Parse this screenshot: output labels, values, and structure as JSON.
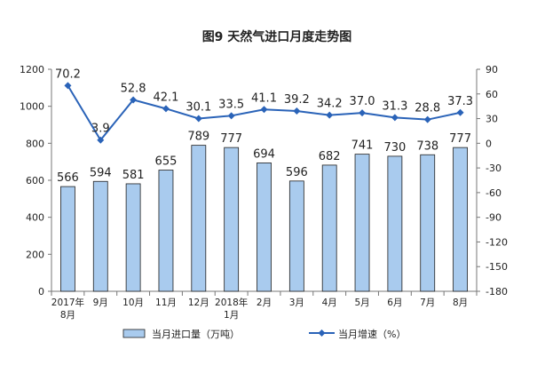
{
  "chart_data": {
    "type": "bar",
    "title": "图9  天然气进口月度走势图",
    "categories": [
      [
        "2017年",
        "8月"
      ],
      [
        "9月"
      ],
      [
        "10月"
      ],
      [
        "11月"
      ],
      [
        "12月"
      ],
      [
        "2018年",
        "1月"
      ],
      [
        "2月"
      ],
      [
        "3月"
      ],
      [
        "4月"
      ],
      [
        "5月"
      ],
      [
        "6月"
      ],
      [
        "7月"
      ],
      [
        "8月"
      ]
    ],
    "series": [
      {
        "name": "当月进口量（万吨）",
        "type": "bar",
        "axis": "left",
        "values": [
          566,
          594,
          581,
          655,
          789,
          777,
          694,
          596,
          682,
          741,
          730,
          738,
          777
        ],
        "labels": [
          "566",
          "594",
          "581",
          "655",
          "789",
          "777",
          "694",
          "596",
          "682",
          "741",
          "730",
          "738",
          "777"
        ]
      },
      {
        "name": "当月增速（%）",
        "type": "line",
        "axis": "right",
        "values": [
          70.2,
          3.9,
          52.8,
          42.1,
          30.1,
          33.5,
          41.1,
          39.2,
          34.2,
          37.0,
          31.3,
          28.8,
          37.3
        ],
        "labels": [
          "70.2",
          "3.9",
          "52.8",
          "42.1",
          "30.1",
          "33.5",
          "41.1",
          "39.2",
          "34.2",
          "37.0",
          "31.3",
          "28.8",
          "37.3"
        ]
      }
    ],
    "y_left": {
      "ylim": [
        0,
        1200
      ],
      "ticks": [
        0,
        200,
        400,
        600,
        800,
        1000,
        1200
      ]
    },
    "y_right": {
      "ylim": [
        -180,
        90
      ],
      "ticks": [
        90,
        60,
        30,
        0,
        -30,
        -60,
        -90,
        -120,
        -150,
        -180
      ]
    },
    "grid": false,
    "legend_position": "bottom",
    "colors": {
      "bar_fill": "#a9cbee",
      "bar_stroke": "#1f1f1f",
      "line": "#2a63b8",
      "axis": "#777777",
      "text": "#222222"
    }
  }
}
